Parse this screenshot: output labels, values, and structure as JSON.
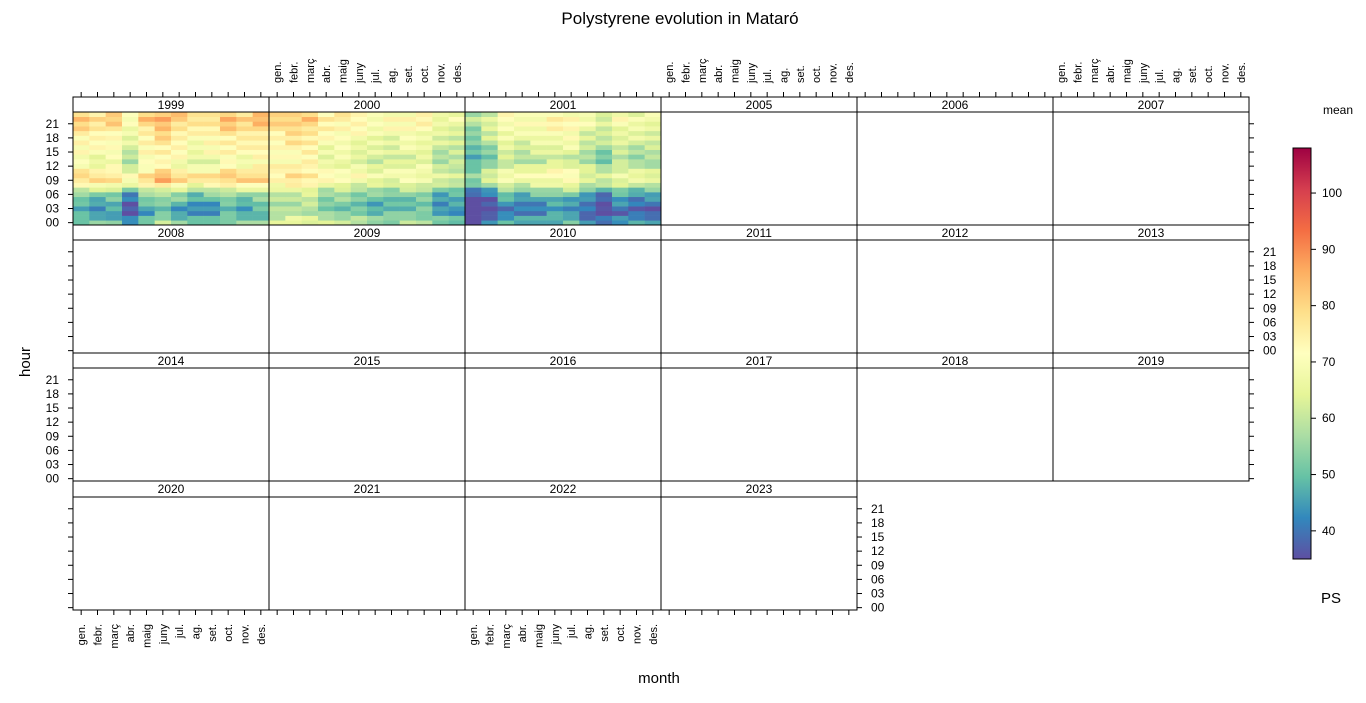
{
  "chart_data": {
    "type": "heatmap",
    "title": "Polystyrene evolution in Mataró",
    "xlabel": "month",
    "ylabel": "hour",
    "months": [
      "gen.",
      "febr.",
      "març",
      "abr.",
      "maig",
      "juny",
      "jul.",
      "ag.",
      "set.",
      "oct.",
      "nov.",
      "des."
    ],
    "hour_ticks": [
      "00",
      "03",
      "06",
      "09",
      "12",
      "15",
      "18",
      "21"
    ],
    "panels": [
      "1999",
      "2000",
      "2001",
      "2005",
      "2006",
      "2007",
      "2008",
      "2009",
      "2010",
      "2011",
      "2012",
      "2013",
      "2014",
      "2015",
      "2016",
      "2017",
      "2018",
      "2019",
      "2020",
      "2021",
      "2022",
      "2023"
    ],
    "panels_with_data": [
      "1999",
      "2000",
      "2001"
    ],
    "colorbar": {
      "title": "mean",
      "label": "PS",
      "range": [
        35,
        108
      ],
      "ticks": [
        40,
        50,
        60,
        70,
        80,
        90,
        100
      ],
      "colors": [
        "#5E4FA2",
        "#3288BD",
        "#66C2A5",
        "#ABDDA4",
        "#E6F598",
        "#FFFFBF",
        "#FEE08B",
        "#FDAE61",
        "#F46D43",
        "#D53E4F",
        "#9E0142"
      ]
    },
    "series_note": "",
    "hourly_profile_by_year": {
      "1999": [
        50,
        46,
        42,
        42,
        44,
        48,
        50,
        58,
        68,
        76,
        76,
        70,
        66,
        64,
        66,
        68,
        68,
        70,
        70,
        72,
        74,
        76,
        78,
        76
      ],
      "2000": [
        58,
        56,
        52,
        50,
        50,
        52,
        54,
        58,
        64,
        68,
        70,
        68,
        66,
        64,
        64,
        66,
        66,
        68,
        68,
        70,
        72,
        72,
        74,
        72
      ],
      "2001": [
        46,
        44,
        40,
        40,
        42,
        44,
        48,
        54,
        62,
        66,
        68,
        66,
        62,
        58,
        58,
        60,
        62,
        64,
        66,
        66,
        68,
        70,
        70,
        68
      ]
    },
    "monthly_offset_by_year": {
      "1999": [
        4,
        2,
        3,
        -6,
        4,
        8,
        4,
        0,
        2,
        6,
        4,
        6
      ],
      "2000": [
        6,
        8,
        8,
        2,
        2,
        0,
        -2,
        -2,
        0,
        0,
        -6,
        -6
      ],
      "2001": [
        -12,
        -6,
        2,
        0,
        2,
        4,
        4,
        -2,
        -6,
        0,
        -2,
        -2
      ]
    }
  }
}
